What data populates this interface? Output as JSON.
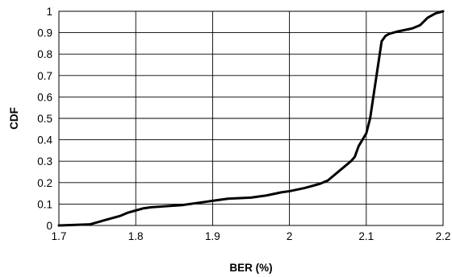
{
  "chart_data": {
    "type": "line",
    "title": "",
    "xlabel": "BER (%)",
    "ylabel": "CDF",
    "xlim": [
      1.7,
      2.2
    ],
    "ylim": [
      0,
      1
    ],
    "x_ticks": [
      1.7,
      1.8,
      1.9,
      2.0,
      2.1,
      2.2
    ],
    "x_tick_labels": [
      "1.7",
      "1.8",
      "1.9",
      "2",
      "2.1",
      "2.2"
    ],
    "y_ticks": [
      0,
      0.1,
      0.2,
      0.3,
      0.4,
      0.5,
      0.6,
      0.7,
      0.8,
      0.9,
      1
    ],
    "y_tick_labels": [
      "0",
      "0.1",
      "0.2",
      "0.3",
      "0.4",
      "0.5",
      "0.6",
      "0.7",
      "0.8",
      "0.9",
      "1"
    ],
    "grid": true,
    "legend": "none",
    "series": [
      {
        "color": "#000000",
        "x": [
          1.7,
          1.74,
          1.75,
          1.76,
          1.77,
          1.78,
          1.79,
          1.8,
          1.81,
          1.82,
          1.84,
          1.86,
          1.88,
          1.9,
          1.92,
          1.95,
          1.97,
          1.99,
          2.0,
          2.02,
          2.04,
          2.05,
          2.06,
          2.07,
          2.08,
          2.085,
          2.09,
          2.1,
          2.105,
          2.11,
          2.12,
          2.125,
          2.13,
          2.14,
          2.16,
          2.17,
          2.18,
          2.19,
          2.2
        ],
        "y": [
          0.0,
          0.005,
          0.015,
          0.025,
          0.035,
          0.045,
          0.06,
          0.07,
          0.08,
          0.085,
          0.09,
          0.095,
          0.105,
          0.115,
          0.125,
          0.13,
          0.14,
          0.155,
          0.16,
          0.175,
          0.195,
          0.21,
          0.24,
          0.27,
          0.3,
          0.32,
          0.37,
          0.43,
          0.5,
          0.62,
          0.86,
          0.885,
          0.895,
          0.905,
          0.92,
          0.935,
          0.97,
          0.99,
          1.0
        ]
      }
    ]
  }
}
